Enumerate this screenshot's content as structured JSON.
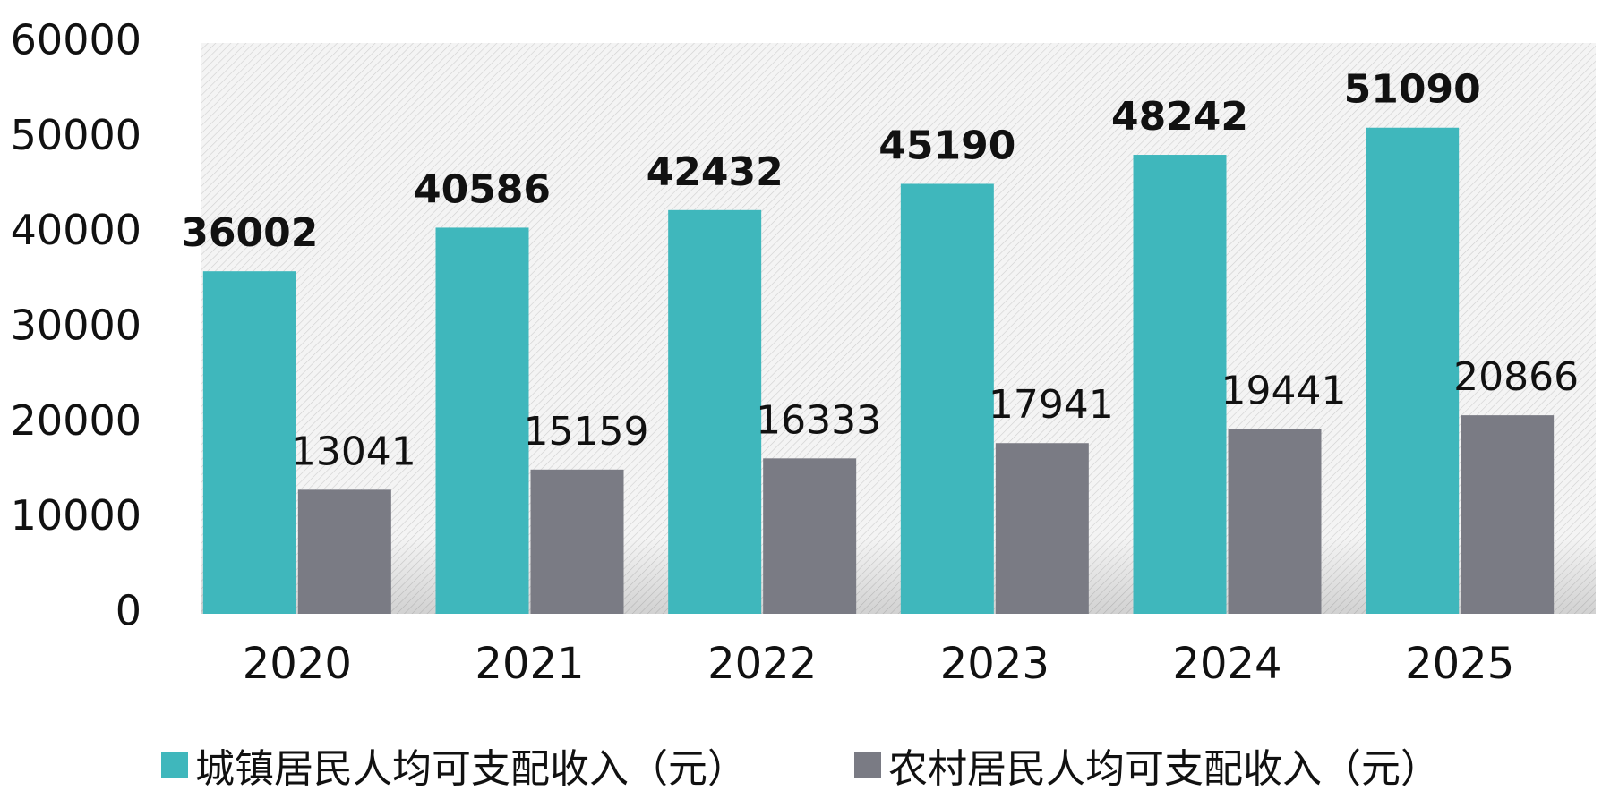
{
  "chart_data": {
    "type": "bar",
    "categories": [
      "2020",
      "2021",
      "2022",
      "2023",
      "2024",
      "2025"
    ],
    "series": [
      {
        "name": "城镇居民人均可支配收入（元）",
        "values": [
          36002,
          40586,
          42432,
          45190,
          48242,
          51090
        ],
        "labels": [
          "36002",
          "40586",
          "42432",
          "45190",
          "48242",
          "51090"
        ],
        "color": "#3fb7bc"
      },
      {
        "name": "农村居民人均可支配收入（元）",
        "values": [
          13041,
          15159,
          16333,
          17941,
          19441,
          20866
        ],
        "labels": [
          "13041",
          "15159",
          "16333",
          "17941",
          "19441",
          "20866"
        ],
        "color": "#7a7b84"
      }
    ],
    "y_ticks": [
      "0",
      "10000",
      "20000",
      "30000",
      "40000",
      "50000",
      "60000"
    ],
    "ylim": [
      0,
      60000
    ],
    "grid": false,
    "legend_position": "bottom",
    "background": "hatched"
  }
}
